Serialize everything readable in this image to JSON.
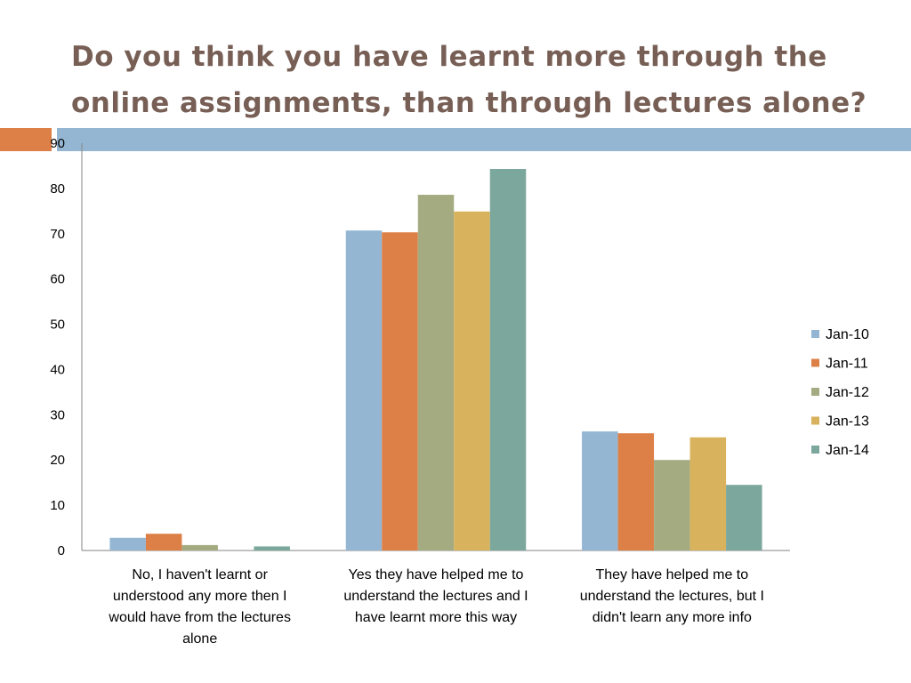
{
  "title": "Do you think you have learnt more through the online assignments, than through lectures alone?",
  "chart_data": {
    "type": "bar",
    "title": "Do you think you have learnt more through the online assignments, than through lectures alone?",
    "categories": [
      "No, I haven't learnt or understood any more then I would have from the lectures alone",
      "Yes they have helped me to understand the lectures and I have learnt more this way",
      "They have helped me to understand the lectures, but I didn't learn any more info"
    ],
    "category_lines": [
      [
        "No, I haven't learnt or",
        "understood any more then I",
        "would have from the lectures",
        "alone"
      ],
      [
        "Yes they have helped me to",
        "understand the lectures and I",
        "have learnt more this way"
      ],
      [
        "They have helped me to",
        "understand the lectures, but I",
        "didn't learn any more info"
      ]
    ],
    "series": [
      {
        "name": "Jan-10",
        "color": "#94b6d2",
        "values": [
          2.8,
          70.7,
          26.3
        ]
      },
      {
        "name": "Jan-11",
        "color": "#dd8047",
        "values": [
          3.7,
          70.3,
          25.9
        ]
      },
      {
        "name": "Jan-12",
        "color": "#a5ab81",
        "values": [
          1.2,
          78.6,
          20
        ]
      },
      {
        "name": "Jan-13",
        "color": "#d8b25c",
        "values": [
          0,
          74.9,
          25
        ]
      },
      {
        "name": "Jan-14",
        "color": "#7ba79d",
        "values": [
          0.9,
          84.3,
          14.5
        ]
      }
    ],
    "ylim": [
      0,
      90
    ],
    "yticks": [
      0,
      10,
      20,
      30,
      40,
      50,
      60,
      70,
      80,
      90
    ],
    "xlabel": "",
    "ylabel": "",
    "grid": false,
    "legend": "right"
  }
}
